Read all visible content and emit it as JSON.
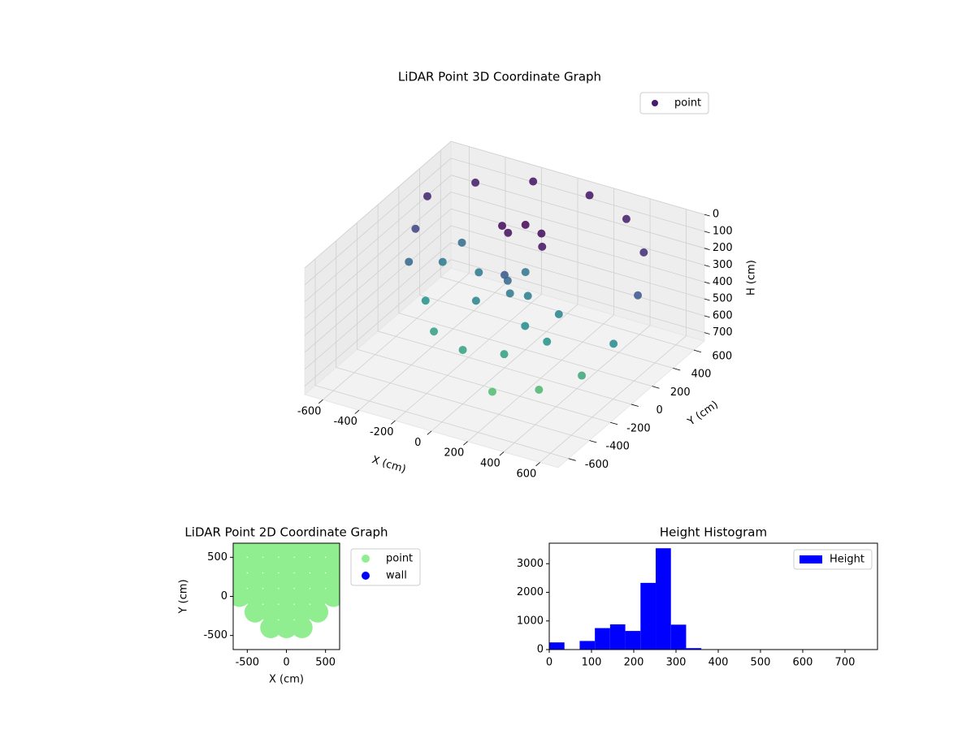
{
  "chart_data": [
    {
      "type": "scatter3d",
      "title": "LiDAR Point 3D Coordinate Graph",
      "xlabel": "X (cm)",
      "ylabel": "Y (cm)",
      "zlabel": "H (cm)",
      "xlim": [
        -700,
        700
      ],
      "ylim": [
        -700,
        700
      ],
      "zlim": [
        750,
        0
      ],
      "xticks": [
        -600,
        -400,
        -200,
        0,
        200,
        400,
        600
      ],
      "yticks": [
        -600,
        -400,
        -200,
        0,
        200,
        400,
        600
      ],
      "zticks": [
        0,
        100,
        200,
        300,
        400,
        500,
        600,
        700
      ],
      "colormap": "viridis",
      "grid": true,
      "legend": "upper right",
      "series": [
        {
          "name": "point",
          "color": "#481b6d",
          "x": [
            -600,
            -450,
            -200,
            100,
            350,
            550,
            650,
            660,
            600,
            450,
            250,
            -550,
            -500,
            -400,
            -350,
            -200,
            0,
            200,
            350,
            -380,
            -100,
            100,
            200,
            -200,
            0,
            300,
            0,
            0,
            30,
            -100,
            0,
            100,
            150,
            -50
          ],
          "y": [
            300,
            500,
            620,
            640,
            560,
            380,
            150,
            -100,
            -300,
            -450,
            -550,
            100,
            -50,
            100,
            -150,
            -330,
            -400,
            -350,
            -200,
            250,
            -100,
            50,
            -150,
            100,
            200,
            0,
            0,
            30,
            0,
            150,
            200,
            180,
            100,
            120
          ],
          "z": [
            80,
            60,
            40,
            40,
            60,
            100,
            200,
            350,
            450,
            500,
            520,
            150,
            250,
            300,
            380,
            420,
            430,
            420,
            380,
            260,
            330,
            320,
            360,
            300,
            290,
            340,
            200,
            250,
            300,
            20,
            10,
            20,
            40,
            30
          ]
        }
      ]
    },
    {
      "type": "scatter",
      "title": "LiDAR Point 2D Coordinate Graph",
      "xlabel": "X (cm)",
      "ylabel": "Y (cm)",
      "xlim": [
        -680,
        680
      ],
      "ylim": [
        -680,
        680
      ],
      "xticks": [
        -500,
        0,
        500
      ],
      "yticks": [
        -500,
        0,
        500
      ],
      "legend": "outside right",
      "series": [
        {
          "name": "point",
          "color": "#90ee90",
          "x": [
            -600,
            -400,
            -200,
            0,
            200,
            400,
            600,
            -600,
            -400,
            -200,
            0,
            200,
            400,
            600,
            -600,
            -400,
            -200,
            0,
            200,
            400,
            600,
            -600,
            -400,
            -200,
            0,
            200,
            400,
            600,
            -400,
            -200,
            0,
            200,
            400,
            -200,
            0,
            200
          ],
          "y": [
            600,
            600,
            600,
            600,
            600,
            600,
            600,
            400,
            400,
            400,
            400,
            400,
            400,
            400,
            200,
            200,
            200,
            200,
            200,
            200,
            200,
            0,
            0,
            0,
            0,
            0,
            0,
            0,
            -200,
            -200,
            -200,
            -200,
            -200,
            -400,
            -400,
            -400
          ]
        },
        {
          "name": "wall",
          "color": "#0000ff",
          "x": [],
          "y": []
        }
      ]
    },
    {
      "type": "histogram",
      "title": "Height Histogram",
      "color": "#0000ff",
      "legend": "upper right",
      "series_name": "Height",
      "bins": [
        0,
        36,
        72,
        108,
        144,
        180,
        216,
        252,
        288,
        324,
        360,
        396,
        432,
        468,
        504,
        540,
        576,
        612,
        648,
        684,
        720
      ],
      "values": [
        250,
        0,
        300,
        750,
        880,
        650,
        2330,
        3540,
        870,
        50,
        0,
        0,
        0,
        0,
        0,
        0,
        0,
        0,
        0,
        0
      ],
      "xlim": [
        0,
        777
      ],
      "ylim": [
        0,
        3717
      ],
      "xticks": [
        0,
        100,
        200,
        300,
        400,
        500,
        600,
        700
      ],
      "yticks": [
        0,
        1000,
        2000,
        3000
      ]
    }
  ]
}
